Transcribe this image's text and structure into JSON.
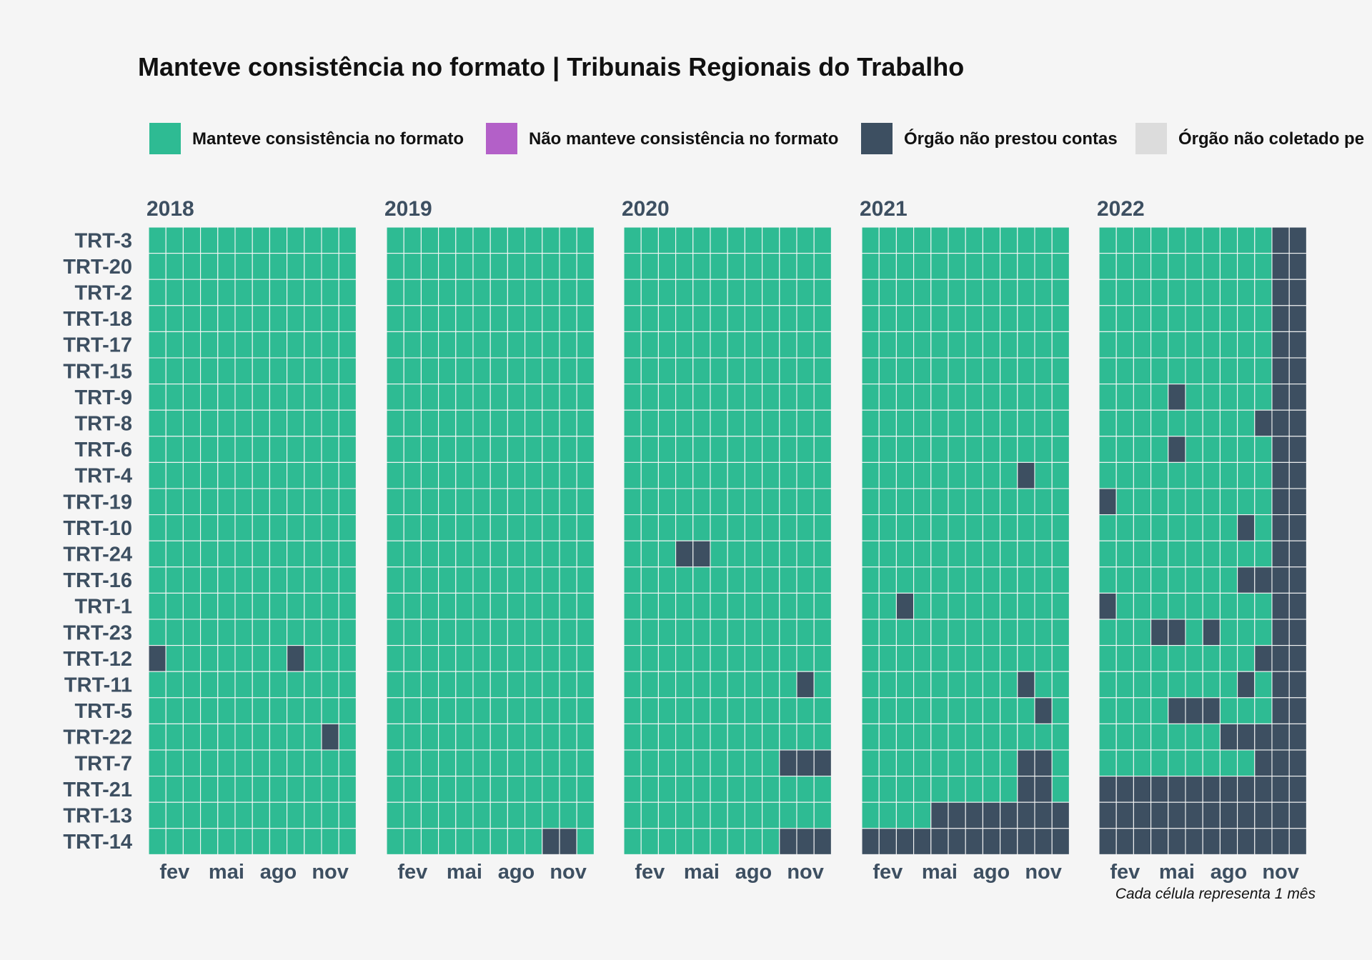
{
  "chart_data": {
    "type": "heatmap",
    "title": "Manteve consistência no formato | Tribunais Regionais do Trabalho",
    "caption": "Cada célula representa 1 mês",
    "legend_placement": "top",
    "legend": [
      {
        "key": "C",
        "label": "Manteve consistência no formato",
        "color": "#2ebb93"
      },
      {
        "key": "N",
        "label": "Não manteve consistência no formato",
        "color": "#b360c8"
      },
      {
        "key": "D",
        "label": "Órgão não prestou contas",
        "color": "#3d4f61"
      },
      {
        "key": "U",
        "label": "Órgão não coletado pe",
        "color": "#dcdcdc"
      }
    ],
    "years": [
      "2018",
      "2019",
      "2020",
      "2021",
      "2022"
    ],
    "x_ticks": [
      {
        "month": 2,
        "label": "fev"
      },
      {
        "month": 5,
        "label": "mai"
      },
      {
        "month": 8,
        "label": "ago"
      },
      {
        "month": 11,
        "label": "nov"
      }
    ],
    "rows": [
      "TRT-3",
      "TRT-20",
      "TRT-2",
      "TRT-18",
      "TRT-17",
      "TRT-15",
      "TRT-9",
      "TRT-8",
      "TRT-6",
      "TRT-4",
      "TRT-19",
      "TRT-10",
      "TRT-24",
      "TRT-16",
      "TRT-1",
      "TRT-23",
      "TRT-12",
      "TRT-11",
      "TRT-5",
      "TRT-22",
      "TRT-7",
      "TRT-21",
      "TRT-13",
      "TRT-14"
    ],
    "default_status": "C",
    "not_reported": {
      "2018": {
        "TRT-12": [
          1,
          9
        ],
        "TRT-22": [
          11
        ]
      },
      "2019": {
        "TRT-14": [
          10,
          11
        ]
      },
      "2020": {
        "TRT-24": [
          4,
          5
        ],
        "TRT-11": [
          11
        ],
        "TRT-7": [
          10,
          11,
          12
        ],
        "TRT-14": [
          10,
          11,
          12
        ]
      },
      "2021": {
        "TRT-4": [
          10
        ],
        "TRT-1": [
          3
        ],
        "TRT-11": [
          10
        ],
        "TRT-5": [
          11
        ],
        "TRT-7": [
          10,
          11
        ],
        "TRT-21": [
          10,
          11
        ],
        "TRT-13": [
          5,
          6,
          7,
          8,
          9,
          10,
          11,
          12
        ],
        "TRT-14": [
          1,
          2,
          3,
          4,
          5,
          6,
          7,
          8,
          9,
          10,
          11,
          12
        ]
      },
      "2022": {
        "TRT-3": [
          11,
          12
        ],
        "TRT-20": [
          11,
          12
        ],
        "TRT-2": [
          11,
          12
        ],
        "TRT-18": [
          11,
          12
        ],
        "TRT-17": [
          11,
          12
        ],
        "TRT-15": [
          11,
          12
        ],
        "TRT-9": [
          5,
          11,
          12
        ],
        "TRT-8": [
          10,
          11,
          12
        ],
        "TRT-6": [
          5,
          11,
          12
        ],
        "TRT-4": [
          11,
          12
        ],
        "TRT-19": [
          1,
          11,
          12
        ],
        "TRT-10": [
          9,
          11,
          12
        ],
        "TRT-24": [
          11,
          12
        ],
        "TRT-16": [
          9,
          10,
          11,
          12
        ],
        "TRT-1": [
          1,
          11,
          12
        ],
        "TRT-23": [
          4,
          5,
          7,
          11,
          12
        ],
        "TRT-12": [
          10,
          11,
          12
        ],
        "TRT-11": [
          9,
          11,
          12
        ],
        "TRT-5": [
          5,
          6,
          7,
          11,
          12
        ],
        "TRT-22": [
          8,
          9,
          10,
          11,
          12
        ],
        "TRT-7": [
          10,
          11,
          12
        ],
        "TRT-21": [
          1,
          2,
          3,
          4,
          5,
          6,
          7,
          8,
          9,
          10,
          11,
          12
        ],
        "TRT-13": [
          1,
          2,
          3,
          4,
          5,
          6,
          7,
          8,
          9,
          10,
          11,
          12
        ],
        "TRT-14": [
          1,
          2,
          3,
          4,
          5,
          6,
          7,
          8,
          9,
          10,
          11,
          12
        ]
      }
    }
  }
}
